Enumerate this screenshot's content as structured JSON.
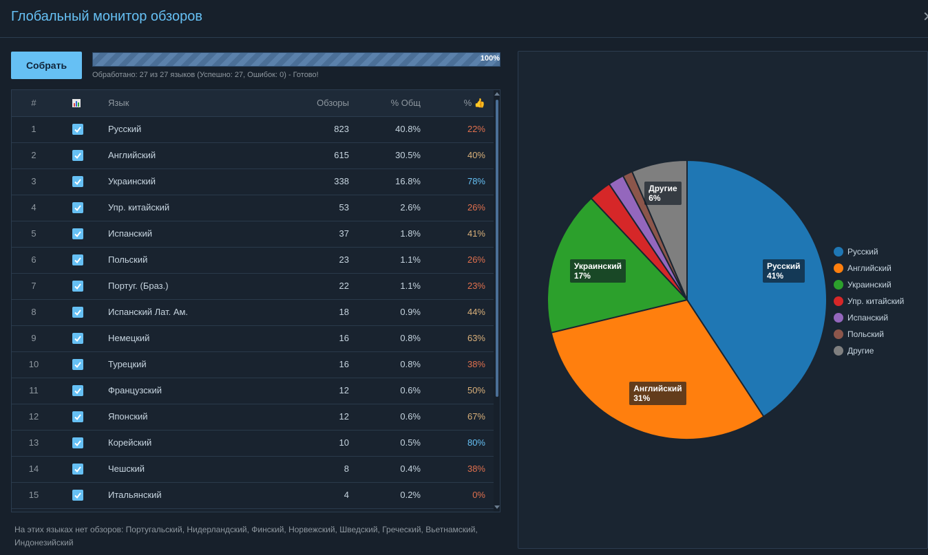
{
  "window": {
    "title": "Глобальный монитор обзоров",
    "close_glyph": "✕"
  },
  "toolbar": {
    "collect_label": "Собрать",
    "progress_percent": 100,
    "progress_label": "100%"
  },
  "status_text": "Обработано: 27 из 27 языков (Успешно: 27, Ошибок: 0) - Готово!",
  "table": {
    "headers": {
      "num": "#",
      "chart_icon": "bar-chart-icon",
      "lang": "Язык",
      "reviews": "Обзоры",
      "pct_total": "% Общ",
      "pct_positive": "% 👍"
    },
    "rows": [
      {
        "num": "1",
        "lang": "Русский",
        "reviews": "823",
        "pct_total": "40.8%",
        "pct_positive": "22%",
        "color": "#e0704e"
      },
      {
        "num": "2",
        "lang": "Английский",
        "reviews": "615",
        "pct_total": "30.5%",
        "pct_positive": "40%",
        "color": "#d9b07a"
      },
      {
        "num": "3",
        "lang": "Украинский",
        "reviews": "338",
        "pct_total": "16.8%",
        "pct_positive": "78%",
        "color": "#66c0f4"
      },
      {
        "num": "4",
        "lang": "Упр. китайский",
        "reviews": "53",
        "pct_total": "2.6%",
        "pct_positive": "26%",
        "color": "#e0704e"
      },
      {
        "num": "5",
        "lang": "Испанский",
        "reviews": "37",
        "pct_total": "1.8%",
        "pct_positive": "41%",
        "color": "#d9b07a"
      },
      {
        "num": "6",
        "lang": "Польский",
        "reviews": "23",
        "pct_total": "1.1%",
        "pct_positive": "26%",
        "color": "#e0704e"
      },
      {
        "num": "7",
        "lang": "Португ. (Браз.)",
        "reviews": "22",
        "pct_total": "1.1%",
        "pct_positive": "23%",
        "color": "#e0704e"
      },
      {
        "num": "8",
        "lang": "Испанский Лат. Ам.",
        "reviews": "18",
        "pct_total": "0.9%",
        "pct_positive": "44%",
        "color": "#d9b07a"
      },
      {
        "num": "9",
        "lang": "Немецкий",
        "reviews": "16",
        "pct_total": "0.8%",
        "pct_positive": "63%",
        "color": "#d9b07a"
      },
      {
        "num": "10",
        "lang": "Турецкий",
        "reviews": "16",
        "pct_total": "0.8%",
        "pct_positive": "38%",
        "color": "#e0704e"
      },
      {
        "num": "11",
        "lang": "Французский",
        "reviews": "12",
        "pct_total": "0.6%",
        "pct_positive": "50%",
        "color": "#d9b07a"
      },
      {
        "num": "12",
        "lang": "Японский",
        "reviews": "12",
        "pct_total": "0.6%",
        "pct_positive": "67%",
        "color": "#d9b07a"
      },
      {
        "num": "13",
        "lang": "Корейский",
        "reviews": "10",
        "pct_total": "0.5%",
        "pct_positive": "80%",
        "color": "#66c0f4"
      },
      {
        "num": "14",
        "lang": "Чешский",
        "reviews": "8",
        "pct_total": "0.4%",
        "pct_positive": "38%",
        "color": "#e0704e"
      },
      {
        "num": "15",
        "lang": "Итальянский",
        "reviews": "4",
        "pct_total": "0.2%",
        "pct_positive": "0%",
        "color": "#e0704e"
      }
    ]
  },
  "note": "На этих языках нет обзоров: Португальский, Нидерландский, Финский, Норвежский, Шведский, Греческий, Вьетнамский, Индонезийский",
  "chart_data": {
    "type": "pie",
    "categories": [
      "Русский",
      "Английский",
      "Украинский",
      "Упр. китайский",
      "Испанский",
      "Польский",
      "Другие"
    ],
    "values": [
      823,
      615,
      338,
      53,
      37,
      23,
      130
    ],
    "colors": [
      "#1f77b4",
      "#ff7f0e",
      "#2ca02c",
      "#d62728",
      "#9467bd",
      "#8c564b",
      "#7f7f7f"
    ],
    "slice_labels": [
      {
        "name": "Русский",
        "pct": "41%"
      },
      {
        "name": "Английский",
        "pct": "31%"
      },
      {
        "name": "Украинский",
        "pct": "17%"
      },
      {
        "name": "Другие",
        "pct": "6%"
      }
    ],
    "legend": [
      "Русский",
      "Английский",
      "Украинский",
      "Упр. китайский",
      "Испанский",
      "Польский",
      "Другие"
    ],
    "legend_position": "right"
  }
}
